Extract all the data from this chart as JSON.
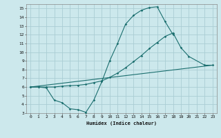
{
  "xlabel": "Humidex (Indice chaleur)",
  "bg_color": "#cce8ec",
  "grid_color": "#aacdd4",
  "line_color": "#1a6e6e",
  "xlim": [
    -0.5,
    23.5
  ],
  "ylim": [
    3,
    15.5
  ],
  "xticks": [
    0,
    1,
    2,
    3,
    4,
    5,
    6,
    7,
    8,
    9,
    10,
    11,
    12,
    13,
    14,
    15,
    16,
    17,
    18,
    19,
    20,
    21,
    22,
    23
  ],
  "yticks": [
    3,
    4,
    5,
    6,
    7,
    8,
    9,
    10,
    11,
    12,
    13,
    14,
    15
  ],
  "curve1_x": [
    0,
    1,
    2,
    3,
    4,
    5,
    6,
    7,
    8,
    9,
    10,
    11,
    12,
    13,
    14,
    15,
    16,
    17,
    18
  ],
  "curve1_y": [
    6.0,
    6.0,
    5.9,
    4.5,
    4.2,
    3.5,
    3.4,
    3.1,
    4.5,
    6.6,
    9.0,
    11.0,
    13.2,
    14.2,
    14.8,
    15.1,
    15.2,
    13.5,
    12.0
  ],
  "curve2_x": [
    0,
    1,
    2,
    3,
    4,
    5,
    6,
    7,
    8,
    9,
    10,
    11,
    12,
    13,
    14,
    15,
    16,
    17,
    18,
    19,
    20,
    22,
    23
  ],
  "curve2_y": [
    6.0,
    6.0,
    6.0,
    6.0,
    6.1,
    6.15,
    6.2,
    6.3,
    6.5,
    6.7,
    7.1,
    7.6,
    8.2,
    8.9,
    9.6,
    10.4,
    11.1,
    11.8,
    12.2,
    10.5,
    9.5,
    8.5,
    8.5
  ],
  "curve3_x": [
    0,
    23
  ],
  "curve3_y": [
    6.0,
    8.5
  ]
}
